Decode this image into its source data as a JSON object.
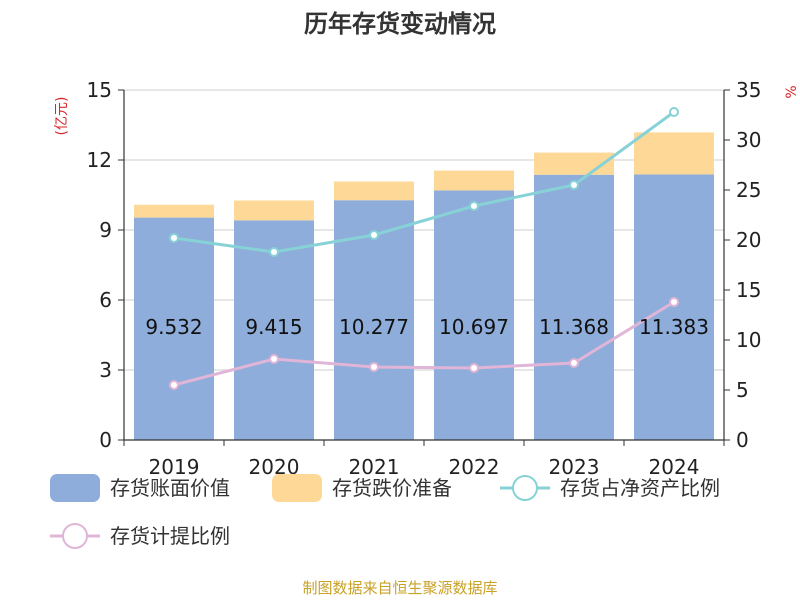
{
  "chart_data": {
    "type": "bar",
    "title": "历年存货变动情况",
    "categories": [
      "2019",
      "2020",
      "2021",
      "2022",
      "2023",
      "2024"
    ],
    "left_axis": {
      "unit_label": "(亿元)",
      "ylim": [
        0,
        15
      ],
      "ticks": [
        "0",
        "3",
        "6",
        "9",
        "12",
        "15"
      ]
    },
    "right_axis": {
      "unit_label": "%",
      "ylim": [
        0,
        35
      ],
      "ticks": [
        "0",
        "5",
        "10",
        "15",
        "20",
        "25",
        "30",
        "35"
      ]
    },
    "series": [
      {
        "name": "存货账面价值",
        "kind": "bar",
        "stack": "main",
        "axis": "left",
        "color": "#8eadda",
        "values": [
          9.532,
          9.415,
          10.277,
          10.697,
          11.368,
          11.383
        ],
        "labels": [
          "9.532",
          "9.415",
          "10.277",
          "10.697",
          "11.368",
          "11.383"
        ]
      },
      {
        "name": "存货跌价准备",
        "kind": "bar",
        "stack": "main",
        "axis": "left",
        "color": "#fdd897",
        "values": [
          0.55,
          0.85,
          0.8,
          0.85,
          0.95,
          1.8
        ]
      },
      {
        "name": "存货占净资产比例",
        "kind": "line",
        "axis": "right",
        "color": "#87d2d6",
        "values": [
          20.2,
          18.8,
          20.5,
          23.4,
          25.5,
          32.8
        ]
      },
      {
        "name": "存货计提比例",
        "kind": "line",
        "axis": "right",
        "color": "#e0b5d7",
        "values": [
          5.5,
          8.1,
          7.3,
          7.2,
          7.7,
          13.8
        ]
      }
    ],
    "grid": true,
    "legend_position": "bottom"
  },
  "source_text": "制图数据来自恒生聚源数据库",
  "colors": {
    "title": "#333333",
    "unit": "#d9252a",
    "source": "#c9a227",
    "grid": "#cfcfcf",
    "axis": "#333333"
  }
}
